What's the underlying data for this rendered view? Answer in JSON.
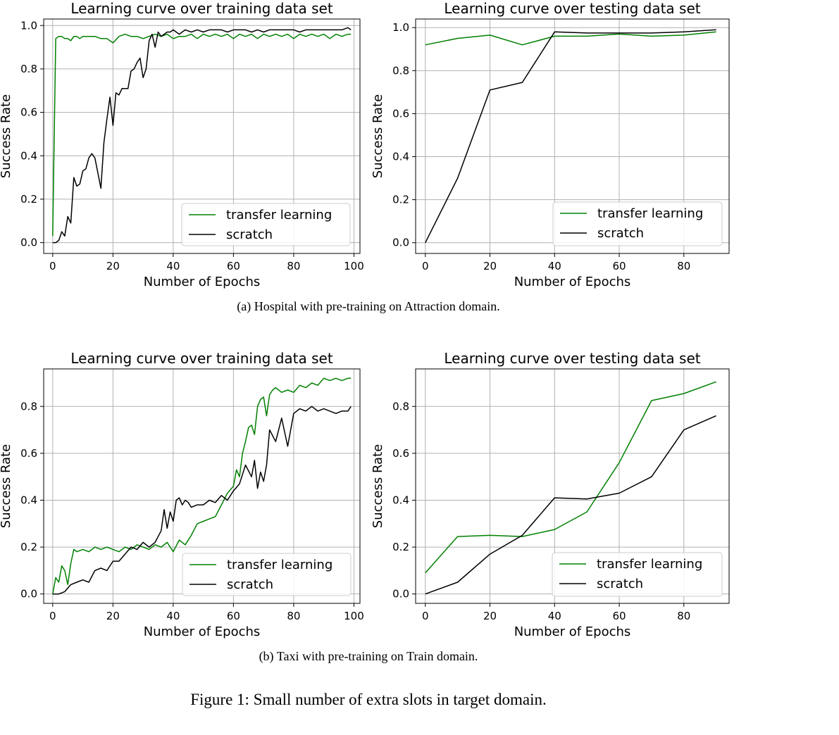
{
  "figure_caption": "Figure 1: Small number of extra slots in target domain.",
  "subcaptions": [
    "(a)  Hospital with pre-training on Attraction domain.",
    "(b)  Taxi with pre-training on Train domain."
  ],
  "colors": {
    "transfer": "#008000",
    "scratch": "#000000",
    "grid": "#b0b0b0"
  },
  "chart_data": [
    {
      "type": "line",
      "title": "Learning curve over training data set",
      "xlabel": "Number of Epochs",
      "ylabel": "Success Rate",
      "xlim": [
        -3,
        102
      ],
      "ylim": [
        -0.05,
        1.03
      ],
      "xticks": [
        0,
        20,
        40,
        60,
        80,
        100
      ],
      "yticks": [
        0.0,
        0.2,
        0.4,
        0.6,
        0.8,
        1.0
      ],
      "grid": true,
      "legend": "lower-right",
      "series": [
        {
          "name": "transfer learning",
          "color": "#008000",
          "x": [
            0,
            1,
            2,
            3,
            4,
            5,
            6,
            7,
            8,
            9,
            10,
            12,
            14,
            16,
            18,
            20,
            22,
            24,
            26,
            28,
            30,
            32,
            34,
            36,
            38,
            40,
            42,
            44,
            46,
            48,
            50,
            52,
            54,
            56,
            58,
            60,
            62,
            64,
            66,
            68,
            70,
            72,
            74,
            76,
            78,
            80,
            82,
            84,
            86,
            88,
            90,
            92,
            94,
            96,
            98,
            99
          ],
          "y": [
            0.03,
            0.94,
            0.95,
            0.95,
            0.94,
            0.94,
            0.93,
            0.95,
            0.95,
            0.94,
            0.95,
            0.95,
            0.95,
            0.94,
            0.94,
            0.92,
            0.95,
            0.96,
            0.95,
            0.95,
            0.94,
            0.95,
            0.96,
            0.95,
            0.96,
            0.94,
            0.95,
            0.95,
            0.96,
            0.94,
            0.96,
            0.95,
            0.96,
            0.95,
            0.96,
            0.94,
            0.96,
            0.95,
            0.96,
            0.94,
            0.96,
            0.95,
            0.96,
            0.95,
            0.96,
            0.94,
            0.96,
            0.95,
            0.96,
            0.95,
            0.96,
            0.94,
            0.96,
            0.95,
            0.96,
            0.96
          ]
        },
        {
          "name": "scratch",
          "color": "#000000",
          "x": [
            0,
            1,
            2,
            3,
            4,
            5,
            6,
            7,
            8,
            9,
            10,
            11,
            12,
            13,
            14,
            15,
            16,
            17,
            18,
            19,
            20,
            21,
            22,
            23,
            24,
            25,
            26,
            27,
            28,
            29,
            30,
            31,
            32,
            33,
            34,
            35,
            36,
            37,
            38,
            39,
            40,
            42,
            44,
            46,
            48,
            50,
            52,
            54,
            56,
            58,
            60,
            62,
            64,
            66,
            68,
            70,
            72,
            74,
            76,
            78,
            80,
            82,
            84,
            86,
            88,
            90,
            92,
            94,
            96,
            98,
            99
          ],
          "y": [
            0.0,
            0.0,
            0.01,
            0.05,
            0.03,
            0.12,
            0.09,
            0.3,
            0.26,
            0.27,
            0.33,
            0.34,
            0.39,
            0.41,
            0.39,
            0.32,
            0.25,
            0.46,
            0.57,
            0.67,
            0.54,
            0.69,
            0.68,
            0.71,
            0.71,
            0.71,
            0.79,
            0.8,
            0.83,
            0.85,
            0.76,
            0.8,
            0.93,
            0.96,
            0.9,
            0.97,
            0.95,
            0.96,
            0.97,
            0.97,
            0.98,
            0.96,
            0.98,
            0.97,
            0.98,
            0.97,
            0.98,
            0.98,
            0.98,
            0.97,
            0.98,
            0.98,
            0.98,
            0.97,
            0.98,
            0.97,
            0.98,
            0.98,
            0.98,
            0.98,
            0.98,
            0.97,
            0.98,
            0.98,
            0.98,
            0.98,
            0.98,
            0.98,
            0.98,
            0.99,
            0.98
          ]
        }
      ]
    },
    {
      "type": "line",
      "title": "Learning curve over testing data set",
      "xlabel": "Number of Epochs",
      "ylabel": "Success Rate",
      "xlim": [
        -3,
        94
      ],
      "ylim": [
        -0.05,
        1.04
      ],
      "xticks": [
        0,
        20,
        40,
        60,
        80
      ],
      "yticks": [
        0.0,
        0.2,
        0.4,
        0.6,
        0.8,
        1.0
      ],
      "grid": true,
      "legend": "lower-right",
      "series": [
        {
          "name": "transfer learning",
          "color": "#008000",
          "x": [
            0,
            10,
            20,
            30,
            40,
            50,
            60,
            70,
            80,
            90
          ],
          "y": [
            0.92,
            0.95,
            0.965,
            0.92,
            0.96,
            0.96,
            0.97,
            0.96,
            0.965,
            0.98
          ]
        },
        {
          "name": "scratch",
          "color": "#000000",
          "x": [
            0,
            10,
            20,
            30,
            40,
            50,
            60,
            70,
            80,
            90
          ],
          "y": [
            0.0,
            0.3,
            0.71,
            0.745,
            0.98,
            0.975,
            0.975,
            0.975,
            0.98,
            0.99
          ]
        }
      ]
    },
    {
      "type": "line",
      "title": "Learning curve over training data set",
      "xlabel": "Number of Epochs",
      "ylabel": "Success Rate",
      "xlim": [
        -3,
        102
      ],
      "ylim": [
        -0.04,
        0.96
      ],
      "xticks": [
        0,
        20,
        40,
        60,
        80,
        100
      ],
      "yticks": [
        0.0,
        0.2,
        0.4,
        0.6,
        0.8
      ],
      "grid": true,
      "legend": "lower-right",
      "series": [
        {
          "name": "transfer learning",
          "color": "#008000",
          "x": [
            0,
            1,
            2,
            3,
            4,
            5,
            6,
            7,
            8,
            10,
            12,
            14,
            16,
            18,
            20,
            22,
            24,
            26,
            28,
            30,
            32,
            34,
            36,
            38,
            40,
            42,
            44,
            46,
            48,
            50,
            52,
            54,
            56,
            58,
            60,
            61,
            62,
            63,
            64,
            65,
            66,
            67,
            68,
            69,
            70,
            71,
            72,
            73,
            74,
            76,
            78,
            80,
            82,
            84,
            86,
            88,
            90,
            92,
            94,
            96,
            98,
            99
          ],
          "y": [
            0.0,
            0.07,
            0.05,
            0.12,
            0.1,
            0.04,
            0.13,
            0.19,
            0.18,
            0.19,
            0.18,
            0.2,
            0.19,
            0.2,
            0.19,
            0.18,
            0.2,
            0.19,
            0.21,
            0.2,
            0.19,
            0.21,
            0.2,
            0.22,
            0.18,
            0.23,
            0.21,
            0.25,
            0.3,
            0.31,
            0.32,
            0.33,
            0.38,
            0.43,
            0.46,
            0.53,
            0.5,
            0.6,
            0.65,
            0.71,
            0.72,
            0.68,
            0.8,
            0.83,
            0.84,
            0.76,
            0.85,
            0.87,
            0.88,
            0.86,
            0.87,
            0.86,
            0.89,
            0.88,
            0.9,
            0.89,
            0.92,
            0.91,
            0.92,
            0.91,
            0.92,
            0.92
          ]
        },
        {
          "name": "scratch",
          "color": "#000000",
          "x": [
            0,
            2,
            4,
            6,
            8,
            10,
            12,
            14,
            16,
            18,
            20,
            22,
            24,
            26,
            28,
            30,
            32,
            34,
            36,
            37,
            38,
            39,
            40,
            41,
            42,
            43,
            44,
            45,
            46,
            48,
            50,
            52,
            54,
            56,
            58,
            60,
            62,
            64,
            66,
            67,
            68,
            69,
            70,
            71,
            72,
            74,
            76,
            78,
            80,
            82,
            84,
            86,
            88,
            90,
            92,
            94,
            96,
            98,
            99
          ],
          "y": [
            0.0,
            0.0,
            0.01,
            0.04,
            0.05,
            0.06,
            0.05,
            0.1,
            0.11,
            0.1,
            0.14,
            0.14,
            0.17,
            0.2,
            0.19,
            0.22,
            0.2,
            0.22,
            0.27,
            0.36,
            0.28,
            0.35,
            0.31,
            0.4,
            0.41,
            0.38,
            0.4,
            0.39,
            0.37,
            0.38,
            0.38,
            0.4,
            0.39,
            0.42,
            0.4,
            0.44,
            0.47,
            0.55,
            0.5,
            0.57,
            0.45,
            0.52,
            0.48,
            0.55,
            0.7,
            0.65,
            0.75,
            0.63,
            0.77,
            0.79,
            0.78,
            0.8,
            0.78,
            0.79,
            0.78,
            0.77,
            0.78,
            0.78,
            0.8
          ]
        }
      ]
    },
    {
      "type": "line",
      "title": "Learning curve over testing data set",
      "xlabel": "Number of Epochs",
      "ylabel": "Success Rate",
      "xlim": [
        -3,
        94
      ],
      "ylim": [
        -0.04,
        0.96
      ],
      "xticks": [
        0,
        20,
        40,
        60,
        80
      ],
      "yticks": [
        0.0,
        0.2,
        0.4,
        0.6,
        0.8
      ],
      "grid": true,
      "legend": "lower-right",
      "series": [
        {
          "name": "transfer learning",
          "color": "#008000",
          "x": [
            0,
            10,
            20,
            30,
            40,
            50,
            60,
            70,
            80,
            90
          ],
          "y": [
            0.09,
            0.245,
            0.25,
            0.245,
            0.275,
            0.35,
            0.56,
            0.825,
            0.855,
            0.905
          ]
        },
        {
          "name": "scratch",
          "color": "#000000",
          "x": [
            0,
            10,
            20,
            30,
            40,
            50,
            60,
            70,
            80,
            90
          ],
          "y": [
            0.0,
            0.05,
            0.17,
            0.25,
            0.41,
            0.405,
            0.43,
            0.5,
            0.7,
            0.76
          ]
        }
      ]
    }
  ]
}
